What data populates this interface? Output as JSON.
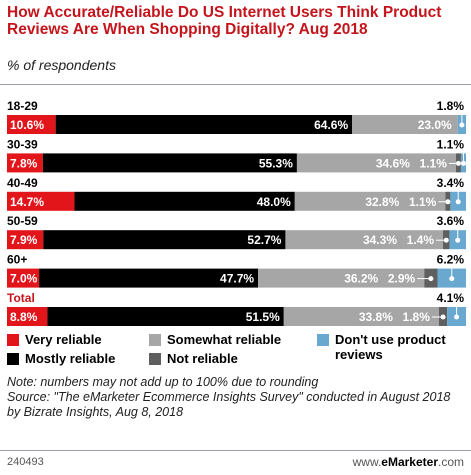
{
  "title": "How Accurate/Reliable Do US Internet Users Think Product Reviews Are When Shopping Digitally? Aug 2018",
  "subtitle": "% of respondents",
  "notes": [
    "Note: numbers may not add up to 100% due to rounding",
    "Source: \"The eMarketer Ecommerce Insights Survey\" conducted in August 2018 by Bizrate Insights, Aug 8, 2018"
  ],
  "footer": {
    "id": "240493",
    "brand_prefix": "www.",
    "brand_name": "eMarketer",
    "brand_suffix": ".com"
  },
  "colors": {
    "very_reliable": "#e2151b",
    "mostly_reliable": "#000000",
    "somewhat_reliable": "#a6a6a6",
    "not_reliable": "#5f5f5f",
    "dont_use": "#69a8cf"
  },
  "chart_data": {
    "type": "bar",
    "orientation": "horizontal-stacked",
    "categories": [
      "18-29",
      "30-39",
      "40-49",
      "50-59",
      "60+",
      "Total"
    ],
    "series": [
      {
        "name": "Very reliable",
        "values": [
          10.6,
          7.8,
          14.7,
          7.9,
          7.0,
          8.8
        ],
        "labels": [
          "10.6%",
          "7.8%",
          "14.7%",
          "7.9%",
          "7.0%",
          "8.8%"
        ]
      },
      {
        "name": "Mostly reliable",
        "values": [
          64.6,
          55.3,
          48.0,
          52.7,
          47.7,
          51.5
        ],
        "labels": [
          "64.6%",
          "55.3%",
          "48.0%",
          "52.7%",
          "47.7%",
          "51.5%"
        ]
      },
      {
        "name": "Somewhat reliable",
        "values": [
          23.0,
          34.6,
          32.8,
          34.3,
          36.2,
          33.8
        ],
        "labels": [
          "23.0%",
          "34.6%",
          "32.8%",
          "34.3%",
          "36.2%",
          "33.8%"
        ]
      },
      {
        "name": "Not reliable",
        "values": [
          0,
          1.1,
          1.1,
          1.4,
          2.9,
          1.8
        ],
        "labels": [
          "",
          "1.1%",
          "1.1%",
          "1.4%",
          "2.9%",
          "1.8%"
        ]
      },
      {
        "name": "Don't use product reviews",
        "values": [
          1.8,
          1.1,
          3.4,
          3.6,
          6.2,
          4.1
        ],
        "labels": [
          "1.8%",
          "1.1%",
          "3.4%",
          "3.6%",
          "6.2%",
          "4.1%"
        ]
      }
    ],
    "legend": [
      "Very reliable",
      "Mostly reliable",
      "Somewhat reliable",
      "Not reliable",
      "Don't use product reviews"
    ],
    "legend_placement": "bottom",
    "xlim": [
      0,
      100
    ],
    "grid": false
  }
}
